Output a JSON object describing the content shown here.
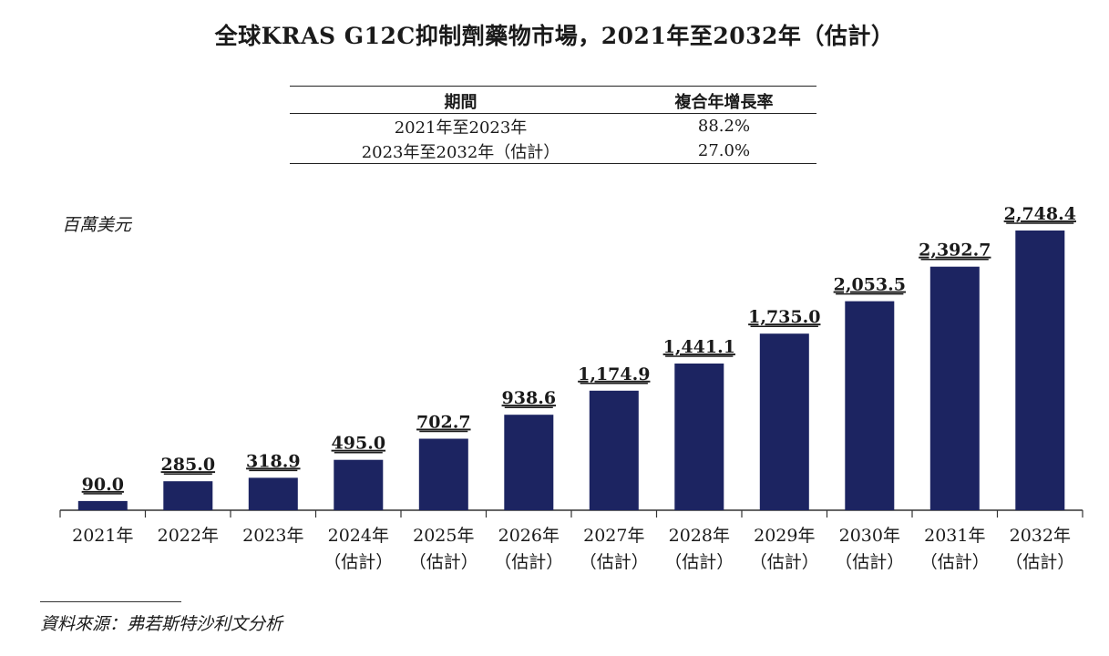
{
  "title": "全球KRAS G12C抑制劑藥物市場，2021年至2032年（估計）",
  "cagr_table": {
    "headers": [
      "期間",
      "複合年增長率"
    ],
    "rows": [
      {
        "period": "2021年至2023年",
        "rate": "88.2%"
      },
      {
        "period": "2023年至2032年（估計）",
        "rate": "27.0%"
      }
    ]
  },
  "unit_label": "百萬美元",
  "source": "資料來源：弗若斯特沙利文分析",
  "colors": {
    "bar": "#1c2461",
    "axis": "#333333",
    "text": "#1a1a1a"
  },
  "chart_data": {
    "type": "bar",
    "title": "全球KRAS G12C抑制劑藥物市場，2021年至2032年（估計）",
    "ylabel": "百萬美元",
    "xlabel": "",
    "categories": [
      {
        "year": "2021年",
        "note": ""
      },
      {
        "year": "2022年",
        "note": ""
      },
      {
        "year": "2023年",
        "note": ""
      },
      {
        "year": "2024年",
        "note": "（估計）"
      },
      {
        "year": "2025年",
        "note": "（估計）"
      },
      {
        "year": "2026年",
        "note": "（估計）"
      },
      {
        "year": "2027年",
        "note": "（估計）"
      },
      {
        "year": "2028年",
        "note": "（估計）"
      },
      {
        "year": "2029年",
        "note": "（估計）"
      },
      {
        "year": "2030年",
        "note": "（估計）"
      },
      {
        "year": "2031年",
        "note": "（估計）"
      },
      {
        "year": "2032年",
        "note": "（估計）"
      }
    ],
    "values": [
      90.0,
      285.0,
      318.9,
      495.0,
      702.7,
      938.6,
      1174.9,
      1441.1,
      1735.0,
      2053.5,
      2392.7,
      2748.4
    ],
    "data_labels": [
      "90.0",
      "285.0",
      "318.9",
      "495.0",
      "702.7",
      "938.6",
      "1,174.9",
      "1,441.1",
      "1,735.0",
      "2,053.5",
      "2,392.7",
      "2,748.4"
    ],
    "ylim": [
      0,
      2748.4
    ],
    "grid": false,
    "legend": "none"
  }
}
